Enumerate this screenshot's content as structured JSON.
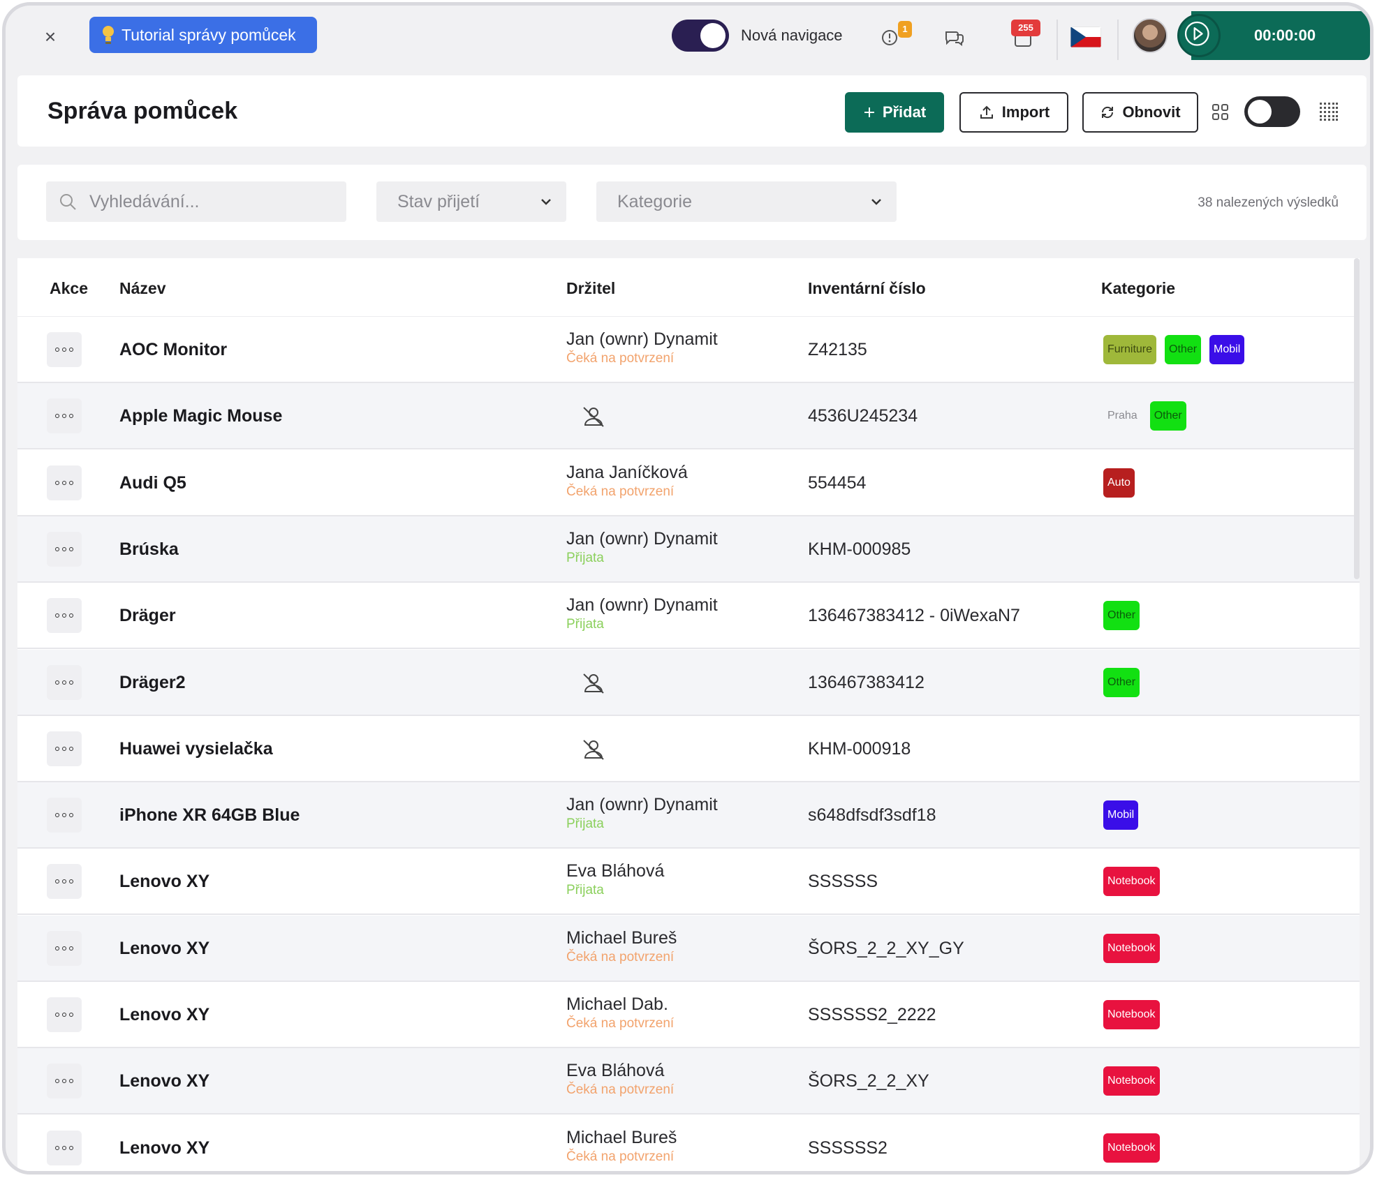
{
  "topbar": {
    "close_glyph": "×",
    "tutorial_label": "Tutorial správy pomůcek",
    "nav_toggle_label": "Nová navigace",
    "nav_toggle_on": true,
    "alerts_badge": "1",
    "notifications_badge": "255",
    "timer": "00:00:00",
    "accent_color": "#0c6b57"
  },
  "header": {
    "title": "Správa pomůcek",
    "add_label": "Přidat",
    "import_label": "Import",
    "refresh_label": "Obnovit"
  },
  "filters": {
    "search_placeholder": "Vyhledávání...",
    "state_placeholder": "Stav přijetí",
    "category_placeholder": "Kategorie",
    "results": "38 nalezených výsledků"
  },
  "table": {
    "columns": [
      "Akce",
      "Název",
      "Držitel",
      "Inventární číslo",
      "Kategorie"
    ],
    "rows": [
      {
        "name": "AOC Monitor",
        "holder": "Jan (ownr) Dynamit",
        "status": "Čeká na potvrzení",
        "status_type": "wait",
        "inv": "Z42135",
        "tags": [
          {
            "label": "Furniture",
            "bg": "#9fb83a",
            "fg": "#3d4a10"
          },
          {
            "label": "Other",
            "bg": "#12e012",
            "fg": "#0b5a0b"
          },
          {
            "label": "Mobil",
            "bg": "#3a0ee8",
            "fg": "#ffffff"
          }
        ]
      },
      {
        "name": "Apple Magic Mouse",
        "holder": "",
        "status": "",
        "status_type": "none",
        "inv": "4536U245234",
        "tags": [
          {
            "label": "Praha",
            "bg": "",
            "fg": "#8a8a90"
          },
          {
            "label": "Other",
            "bg": "#12e012",
            "fg": "#0b5a0b"
          }
        ]
      },
      {
        "name": "Audi Q5",
        "holder": "Jana Janíčková",
        "status": "Čeká na potvrzení",
        "status_type": "wait",
        "inv": "554454",
        "tags": [
          {
            "label": "Auto",
            "bg": "#b71f1f",
            "fg": "#ffffff"
          }
        ]
      },
      {
        "name": "Brúska",
        "holder": "Jan (ownr) Dynamit",
        "status": "Přijata",
        "status_type": "ok",
        "inv": "KHM-000985",
        "tags": []
      },
      {
        "name": "Dräger",
        "holder": "Jan (ownr) Dynamit",
        "status": "Přijata",
        "status_type": "ok",
        "inv": "136467383412 - 0iWexaN7",
        "tags": [
          {
            "label": "Other",
            "bg": "#12e012",
            "fg": "#0b5a0b"
          }
        ]
      },
      {
        "name": "Dräger2",
        "holder": "",
        "status": "",
        "status_type": "none",
        "inv": "136467383412",
        "tags": [
          {
            "label": "Other",
            "bg": "#12e012",
            "fg": "#0b5a0b"
          }
        ]
      },
      {
        "name": "Huawei vysielačka",
        "holder": "",
        "status": "",
        "status_type": "none",
        "inv": "KHM-000918",
        "tags": []
      },
      {
        "name": "iPhone XR 64GB Blue",
        "holder": "Jan (ownr) Dynamit",
        "status": "Přijata",
        "status_type": "ok",
        "inv": "s648dfsdf3sdf18",
        "tags": [
          {
            "label": "Mobil",
            "bg": "#3a0ee8",
            "fg": "#ffffff"
          }
        ]
      },
      {
        "name": "Lenovo XY",
        "holder": "Eva Bláhová",
        "status": "Přijata",
        "status_type": "ok",
        "inv": "SSSSSS",
        "tags": [
          {
            "label": "Notebook",
            "bg": "#e8123f",
            "fg": "#ffffff"
          }
        ]
      },
      {
        "name": "Lenovo XY",
        "holder": "Michael Bureš",
        "status": "Čeká na potvrzení",
        "status_type": "wait",
        "inv": "ŠORS_2_2_XY_GY",
        "tags": [
          {
            "label": "Notebook",
            "bg": "#e8123f",
            "fg": "#ffffff"
          }
        ]
      },
      {
        "name": "Lenovo XY",
        "holder": "Michael Dab.",
        "status": "Čeká na potvrzení",
        "status_type": "wait",
        "inv": "SSSSSS2_2222",
        "tags": [
          {
            "label": "Notebook",
            "bg": "#e8123f",
            "fg": "#ffffff"
          }
        ]
      },
      {
        "name": "Lenovo XY",
        "holder": "Eva Bláhová",
        "status": "Čeká na potvrzení",
        "status_type": "wait",
        "inv": "ŠORS_2_2_XY",
        "tags": [
          {
            "label": "Notebook",
            "bg": "#e8123f",
            "fg": "#ffffff"
          }
        ]
      },
      {
        "name": "Lenovo XY",
        "holder": "Michael Bureš",
        "status": "Čeká na potvrzení",
        "status_type": "wait",
        "inv": "SSSSSS2",
        "tags": [
          {
            "label": "Notebook",
            "bg": "#e8123f",
            "fg": "#ffffff"
          }
        ]
      }
    ]
  }
}
